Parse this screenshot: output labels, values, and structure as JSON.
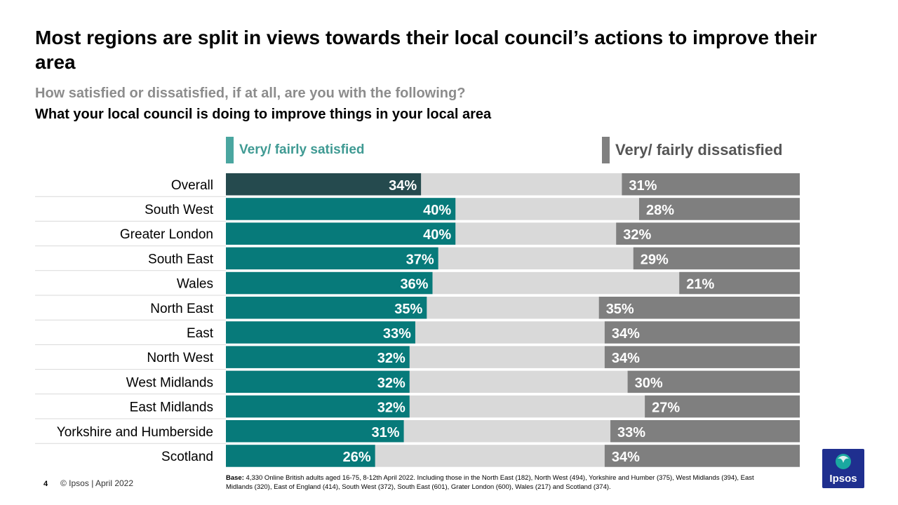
{
  "title": "Most regions are split in views towards their local council’s actions to improve their area",
  "subtitle": "How satisfied or dissatisfied, if at all, are you with the following?",
  "question": "What your local council is doing to improve things in your local area",
  "legend": {
    "satisfied": "Very/ fairly satisfied",
    "dissatisfied": "Very/ fairly dissatisfied"
  },
  "colors": {
    "overall_satisfied": "#254a4e",
    "satisfied": "#077a7a",
    "neutral": "#d9d9d9",
    "dissatisfied": "#7f7f7f"
  },
  "chart_data": {
    "type": "bar",
    "orientation": "horizontal-stacked",
    "categories": [
      "Overall",
      "South West",
      "Greater London",
      "South East",
      "Wales",
      "North East",
      "East",
      "North West",
      "West Midlands",
      "East  Midlands",
      "Yorkshire and Humberside",
      "Scotland"
    ],
    "series": [
      {
        "name": "Very/ fairly satisfied",
        "values": [
          34,
          40,
          40,
          37,
          36,
          35,
          33,
          32,
          32,
          32,
          31,
          26
        ]
      },
      {
        "name": "Very/ fairly dissatisfied",
        "values": [
          31,
          28,
          32,
          29,
          21,
          35,
          34,
          34,
          30,
          27,
          33,
          34
        ]
      }
    ],
    "unit": "%",
    "xlim": [
      0,
      100
    ],
    "grid": false
  },
  "footer": {
    "page_number": "4",
    "copyright": "© Ipsos | April 2022",
    "base_label": "Base:",
    "base_text": "4,330 Online British adults aged 16-75, 8-12th April 2022. Including those in the North East (182), North West (494), Yorkshire and Humber (375), West Midlands (394), East Midlands (320), East  of England (414), South West (372), South East (601), Grater London (600), Wales (217) and Scotland (374)."
  },
  "logo_text": "Ipsos"
}
